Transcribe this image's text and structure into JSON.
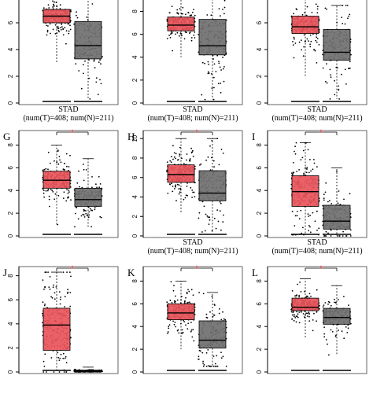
{
  "figure": {
    "caption_title": "STAD",
    "caption_counts": "(num(T)=408; num(N)=211)",
    "tumor_color": "#e8545a",
    "normal_color": "#6f6f6f",
    "significance_mark": "*",
    "significance_color": "#e8545a"
  },
  "chart_data": [
    {
      "type": "box",
      "panel": "",
      "ylim": [
        0,
        9
      ],
      "yticks": [
        0,
        2,
        4,
        6,
        8
      ],
      "boxes": [
        {
          "group": "T",
          "q1": 6.0,
          "median": 6.5,
          "q3": 7.0,
          "whisker_low": 3.0,
          "whisker_high": 8.8
        },
        {
          "group": "N",
          "q1": 3.3,
          "median": 4.3,
          "q3": 6.1,
          "whisker_low": 0.3,
          "whisker_high": 8.8
        }
      ],
      "significance": false,
      "show_caption": true
    },
    {
      "type": "box",
      "panel": "",
      "ylim": [
        0,
        10.5
      ],
      "yticks": [
        0,
        2,
        4,
        6,
        8,
        10
      ],
      "boxes": [
        {
          "group": "T",
          "q1": 6.3,
          "median": 6.8,
          "q3": 7.5,
          "whisker_low": 4.0,
          "whisker_high": 10.0
        },
        {
          "group": "N",
          "q1": 4.2,
          "median": 5.0,
          "q3": 7.3,
          "whisker_low": 0.3,
          "whisker_high": 10.0
        }
      ],
      "significance": false,
      "show_caption": true
    },
    {
      "type": "box",
      "panel": "",
      "ylim": [
        0,
        9
      ],
      "yticks": [
        0,
        2,
        4,
        6,
        8
      ],
      "boxes": [
        {
          "group": "T",
          "q1": 5.2,
          "median": 5.7,
          "q3": 6.5,
          "whisker_low": 2.0,
          "whisker_high": 8.5
        },
        {
          "group": "N",
          "q1": 3.2,
          "median": 3.8,
          "q3": 5.5,
          "whisker_low": 0.3,
          "whisker_high": 7.3
        }
      ],
      "significance": false,
      "show_caption": true
    },
    {
      "type": "box",
      "panel": "G",
      "ylim": [
        0,
        9
      ],
      "yticks": [
        0,
        2,
        4,
        6,
        8
      ],
      "boxes": [
        {
          "group": "T",
          "q1": 4.2,
          "median": 4.9,
          "q3": 5.7,
          "whisker_low": 1.0,
          "whisker_high": 8.0
        },
        {
          "group": "N",
          "q1": 2.6,
          "median": 3.2,
          "q3": 4.2,
          "whisker_low": 0.8,
          "whisker_high": 6.8
        }
      ],
      "significance": true,
      "show_caption": false
    },
    {
      "type": "box",
      "panel": "H",
      "ylim": [
        0,
        10.5
      ],
      "yticks": [
        0,
        2,
        4,
        6,
        8,
        10
      ],
      "boxes": [
        {
          "group": "T",
          "q1": 5.5,
          "median": 6.3,
          "q3": 7.3,
          "whisker_low": 2.3,
          "whisker_high": 10.0
        },
        {
          "group": "N",
          "q1": 3.6,
          "median": 4.4,
          "q3": 6.7,
          "whisker_low": 0.4,
          "whisker_high": 10.0
        }
      ],
      "significance": true,
      "show_caption": true
    },
    {
      "type": "box",
      "panel": "I",
      "ylim": [
        0,
        9
      ],
      "yticks": [
        0,
        2,
        4,
        6,
        8
      ],
      "boxes": [
        {
          "group": "T",
          "q1": 2.6,
          "median": 3.9,
          "q3": 5.3,
          "whisker_low": 0.1,
          "whisker_high": 8.2
        },
        {
          "group": "N",
          "q1": 0.6,
          "median": 1.3,
          "q3": 2.7,
          "whisker_low": 0.0,
          "whisker_high": 6.0
        }
      ],
      "significance": true,
      "show_caption": true
    },
    {
      "type": "box",
      "panel": "J",
      "ylim": [
        0,
        8.5
      ],
      "yticks": [
        0,
        2,
        4,
        6,
        8
      ],
      "boxes": [
        {
          "group": "T",
          "q1": 1.8,
          "median": 3.9,
          "q3": 5.3,
          "whisker_low": 0.0,
          "whisker_high": 8.3
        },
        {
          "group": "N",
          "q1": 0.0,
          "median": 0.05,
          "q3": 0.1,
          "whisker_low": 0.0,
          "whisker_high": 0.4
        }
      ],
      "significance": true,
      "show_caption": false
    },
    {
      "type": "box",
      "panel": "K",
      "ylim": [
        0,
        9
      ],
      "yticks": [
        0,
        2,
        4,
        6,
        8
      ],
      "boxes": [
        {
          "group": "T",
          "q1": 4.6,
          "median": 5.2,
          "q3": 6.0,
          "whisker_low": 2.0,
          "whisker_high": 8.0
        },
        {
          "group": "N",
          "q1": 2.1,
          "median": 2.8,
          "q3": 4.5,
          "whisker_low": 0.5,
          "whisker_high": 7.0
        }
      ],
      "significance": true,
      "show_caption": false
    },
    {
      "type": "box",
      "panel": "L",
      "ylim": [
        0,
        9
      ],
      "yticks": [
        0,
        2,
        4,
        6,
        8
      ],
      "boxes": [
        {
          "group": "T",
          "q1": 5.4,
          "median": 5.7,
          "q3": 6.5,
          "whisker_low": 3.0,
          "whisker_high": 8.2
        },
        {
          "group": "N",
          "q1": 4.2,
          "median": 4.8,
          "q3": 5.6,
          "whisker_low": 1.5,
          "whisker_high": 7.6
        }
      ],
      "significance": true,
      "show_caption": false
    }
  ]
}
